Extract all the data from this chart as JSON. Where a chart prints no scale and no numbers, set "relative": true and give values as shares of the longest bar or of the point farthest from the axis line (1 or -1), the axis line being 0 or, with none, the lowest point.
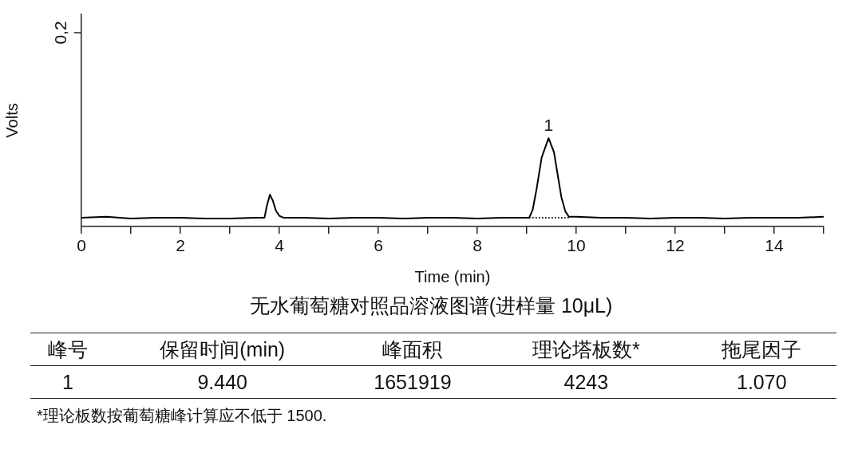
{
  "chart_data": {
    "type": "line",
    "title": "无水葡萄糖对照品溶液图谱(进样量 10μL)",
    "xlabel": "Time (min)",
    "ylabel": "Volts",
    "xlim": [
      0,
      15
    ],
    "xticks": [
      0,
      {
        "value": 1,
        "label": null
      },
      2,
      {
        "value": 3,
        "label": null
      },
      4,
      {
        "value": 5,
        "label": null
      },
      6,
      {
        "value": 7,
        "label": null
      },
      8,
      {
        "value": 9,
        "label": null
      },
      10,
      {
        "value": 11,
        "label": null
      },
      12,
      {
        "value": 13,
        "label": null
      },
      14,
      {
        "value": 15,
        "label": null
      }
    ],
    "relative": true,
    "grid": false,
    "legend": false,
    "marker": "none",
    "series": [
      {
        "color": "#000000",
        "line_style": "solid",
        "x": [
          0,
          0.5,
          1,
          1.5,
          2,
          2.5,
          3,
          3.5,
          3.7,
          3.75,
          3.81,
          3.87,
          3.93,
          4.0,
          4.08,
          4.5,
          5,
          5.5,
          6,
          6.5,
          7,
          7.5,
          8,
          8.5,
          9.05,
          9.12,
          9.2,
          9.3,
          9.44,
          9.55,
          9.62,
          9.7,
          9.78,
          9.85,
          10,
          10.5,
          11,
          11.5,
          12,
          12.5,
          13,
          13.5,
          14,
          14.5,
          15
        ],
        "values": [
          0.1,
          0.11,
          0.09,
          0.1,
          0.1,
          0.09,
          0.09,
          0.1,
          0.1,
          0.24,
          0.36,
          0.29,
          0.18,
          0.12,
          0.1,
          0.1,
          0.09,
          0.1,
          0.1,
          0.09,
          0.1,
          0.1,
          0.09,
          0.1,
          0.1,
          0.19,
          0.43,
          0.78,
          1,
          0.84,
          0.6,
          0.33,
          0.17,
          0.11,
          0.11,
          0.1,
          0.1,
          0.09,
          0.1,
          0.1,
          0.09,
          0.1,
          0.1,
          0.1,
          0.11
        ]
      },
      {
        "color": "#000000",
        "line_style": "dotted",
        "x": [
          9.05,
          9.85
        ],
        "values": [
          0.1,
          0.1
        ]
      }
    ],
    "annotations": [
      "0,2",
      {
        "text": "1",
        "x": 9.44,
        "y": 1
      },
      "峰号\t保留时间(min)\t峰面积\t理论塔板数*\t拖尾因子",
      "1\t9.440\t1651919\t4243\t1.070",
      "*理论板数按葡萄糖峰计算应不低于 1500."
    ]
  }
}
